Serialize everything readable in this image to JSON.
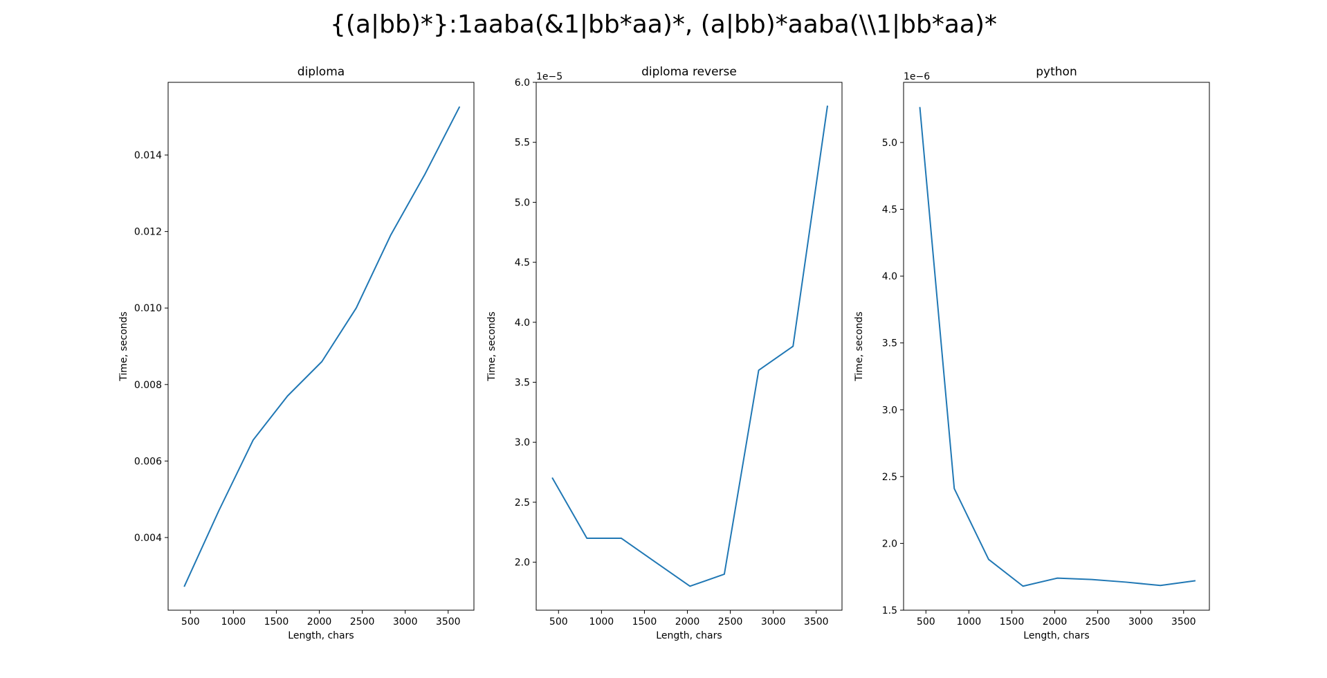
{
  "figure": {
    "suptitle": "{(a|bb)*}:1aaba(&1|bb*aa)*, (a|bb)*aaba(\\\\1|bb*aa)*"
  },
  "chart_data": [
    {
      "type": "line",
      "title": "diploma",
      "xlabel": "Length, chars",
      "ylabel": "Time, seconds",
      "offset_text": "",
      "color": "#1f77b4",
      "xlim": [
        240,
        3800
      ],
      "ylim": [
        0.0021,
        0.0159
      ],
      "xticks": [
        500,
        1000,
        1500,
        2000,
        2500,
        3000,
        3500
      ],
      "xtick_labels": [
        "500",
        "1000",
        "1500",
        "2000",
        "2500",
        "3000",
        "3500"
      ],
      "yticks": [
        0.004,
        0.006,
        0.008,
        0.01,
        0.012,
        0.014
      ],
      "ytick_labels": [
        "0.004",
        "0.006",
        "0.008",
        "0.010",
        "0.012",
        "0.014"
      ],
      "x": [
        430,
        830,
        1230,
        1630,
        2030,
        2430,
        2830,
        3230,
        3630
      ],
      "y": [
        0.00273,
        0.0047,
        0.00655,
        0.0077,
        0.0086,
        0.01,
        0.0119,
        0.0135,
        0.01525
      ]
    },
    {
      "type": "line",
      "title": "diploma reverse",
      "xlabel": "Length, chars",
      "ylabel": "Time, seconds",
      "offset_text": "1e−5",
      "color": "#1f77b4",
      "xlim": [
        240,
        3800
      ],
      "ylim": [
        1.6,
        6.0
      ],
      "xticks": [
        500,
        1000,
        1500,
        2000,
        2500,
        3000,
        3500
      ],
      "xtick_labels": [
        "500",
        "1000",
        "1500",
        "2000",
        "2500",
        "3000",
        "3500"
      ],
      "yticks": [
        2.0,
        2.5,
        3.0,
        3.5,
        4.0,
        4.5,
        5.0,
        5.5,
        6.0
      ],
      "ytick_labels": [
        "2.0",
        "2.5",
        "3.0",
        "3.5",
        "4.0",
        "4.5",
        "5.0",
        "5.5",
        "6.0"
      ],
      "x": [
        430,
        830,
        1230,
        1630,
        2030,
        2430,
        2830,
        3230,
        3630
      ],
      "y": [
        2.7,
        2.2,
        2.2,
        2.0,
        1.8,
        1.9,
        3.6,
        3.8,
        5.8
      ]
    },
    {
      "type": "line",
      "title": "python",
      "xlabel": "Length, chars",
      "ylabel": "Time, seconds",
      "offset_text": "1e−6",
      "color": "#1f77b4",
      "xlim": [
        240,
        3800
      ],
      "ylim": [
        1.5,
        5.45
      ],
      "xticks": [
        500,
        1000,
        1500,
        2000,
        2500,
        3000,
        3500
      ],
      "xtick_labels": [
        "500",
        "1000",
        "1500",
        "2000",
        "2500",
        "3000",
        "3500"
      ],
      "yticks": [
        1.5,
        2.0,
        2.5,
        3.0,
        3.5,
        4.0,
        4.5,
        5.0
      ],
      "ytick_labels": [
        "1.5",
        "2.0",
        "2.5",
        "3.0",
        "3.5",
        "4.0",
        "4.5",
        "5.0"
      ],
      "x": [
        430,
        830,
        1230,
        1630,
        2030,
        2430,
        2830,
        3230,
        3630
      ],
      "y": [
        5.26,
        2.41,
        1.88,
        1.68,
        1.74,
        1.73,
        1.71,
        1.685,
        1.72
      ]
    }
  ]
}
